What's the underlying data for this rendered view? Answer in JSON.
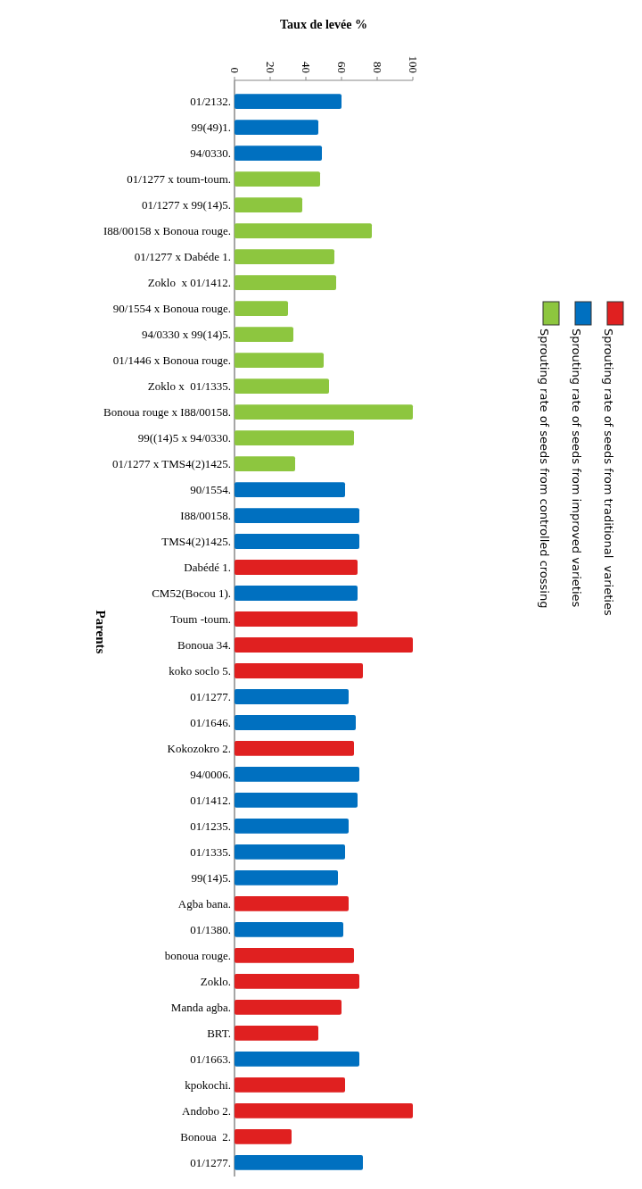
{
  "chart_data": {
    "type": "bar",
    "orientation": "horizontal",
    "xlabel": "Taux de levée %",
    "ylabel": "Parents",
    "categories": [
      "01/2132.",
      "99(49)1.",
      "94/0330.",
      "01/1277 x toum-toum.",
      "01/1277 x 99(14)5.",
      "I88/00158 x Bonoua rouge.",
      "01/1277 x Dabéde 1.",
      "Zoklo  x 01/1412.",
      "90/1554 x Bonoua rouge.",
      "94/0330 x 99(14)5.",
      "01/1446 x Bonoua rouge.",
      "Zoklo x  01/1335.",
      "Bonoua rouge x I88/00158.",
      "99((14)5 x 94/0330.",
      "01/1277 x TMS4(2)1425.",
      "90/1554.",
      "I88/00158.",
      "TMS4(2)1425.",
      "Dabédé 1.",
      "CM52(Bocou 1).",
      "Toum -toum.",
      "Bonoua 34.",
      "koko soclo 5.",
      "01/1277.",
      "01/1646.",
      "Kokozokro 2.",
      "94/0006.",
      "01/1412.",
      "01/1235.",
      "01/1335.",
      "99(14)5.",
      "Agba bana.",
      "01/1380.",
      "bonoua rouge.",
      "Zoklo.",
      "Manda agba.",
      "BRT.",
      "01/1663.",
      "kpokochi.",
      "Andobo 2.",
      "Bonoua  2.",
      "01/1277."
    ],
    "series": [
      {
        "name": "Sprouting rate of seeds from traditional  varieties",
        "color": "#e02020",
        "values": [
          null,
          null,
          null,
          null,
          null,
          null,
          null,
          null,
          null,
          null,
          null,
          null,
          null,
          null,
          null,
          null,
          null,
          null,
          69,
          null,
          69,
          100,
          72,
          null,
          null,
          67,
          null,
          null,
          null,
          null,
          null,
          64,
          null,
          67,
          70,
          60,
          47,
          null,
          62,
          100,
          32,
          null
        ]
      },
      {
        "name": "Sprouting rate of seeds from improved varieties",
        "color": "#0070c0",
        "values": [
          60,
          47,
          49,
          null,
          null,
          null,
          null,
          null,
          null,
          null,
          null,
          null,
          null,
          null,
          null,
          62,
          70,
          70,
          null,
          69,
          null,
          null,
          null,
          64,
          68,
          null,
          70,
          69,
          64,
          62,
          58,
          null,
          61,
          null,
          null,
          null,
          null,
          70,
          null,
          null,
          null,
          72
        ]
      },
      {
        "name": "Sprouting rate of seeds from controlled crossing",
        "color": "#8dc63f",
        "values": [
          null,
          null,
          null,
          48,
          38,
          77,
          56,
          57,
          30,
          33,
          50,
          53,
          100,
          67,
          34,
          null,
          null,
          null,
          null,
          null,
          null,
          null,
          null,
          null,
          null,
          null,
          null,
          null,
          null,
          null,
          null,
          null,
          null,
          null,
          null,
          null,
          null,
          null,
          null,
          null,
          null,
          null
        ]
      }
    ],
    "xlim": [
      0,
      100
    ],
    "xticks": [
      0,
      20,
      40,
      60,
      80,
      100
    ],
    "legend": "right"
  }
}
